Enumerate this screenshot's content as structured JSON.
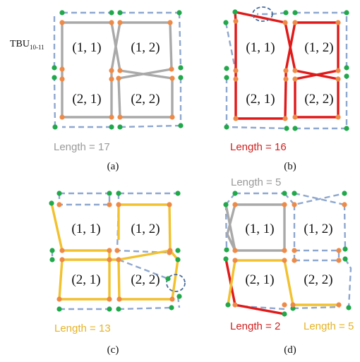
{
  "figure": {
    "tbu_label": "TBU",
    "tbu_subscript": "10-11",
    "colors": {
      "grey": "#a9a9a9",
      "red": "#e01919",
      "yellow": "#f2c12e",
      "dashed_blue": "#8ea7cf",
      "green_node": "#21a84a",
      "orange_node": "#ee8a47",
      "highlight_ellipse": "#4a6d9c",
      "length_grey": "#9a9a9a",
      "length_red": "#d11f1f",
      "length_yellow": "#e6b325"
    },
    "panels": [
      {
        "caption": "(a)",
        "cells": [
          "(1, 1)",
          "(1, 2)",
          "(2, 1)",
          "(2, 2)"
        ],
        "lengths": [
          "Length = 17"
        ]
      },
      {
        "caption": "(b)",
        "cells": [
          "(1, 1)",
          "(1, 2)",
          "(2, 1)",
          "(2, 2)"
        ],
        "lengths": [
          "Length = 16"
        ]
      },
      {
        "caption": "(c)",
        "cells": [
          "(1, 1)",
          "(1, 2)",
          "(2, 1)",
          "(2, 2)"
        ],
        "lengths": [
          "Length = 13"
        ]
      },
      {
        "caption": "(d)",
        "cells": [
          "(1, 1)",
          "(1, 2)",
          "(2, 1)",
          "(2, 2)"
        ],
        "lengths": [
          "Length = 5",
          "Length = 2",
          "Length = 5"
        ]
      }
    ]
  }
}
